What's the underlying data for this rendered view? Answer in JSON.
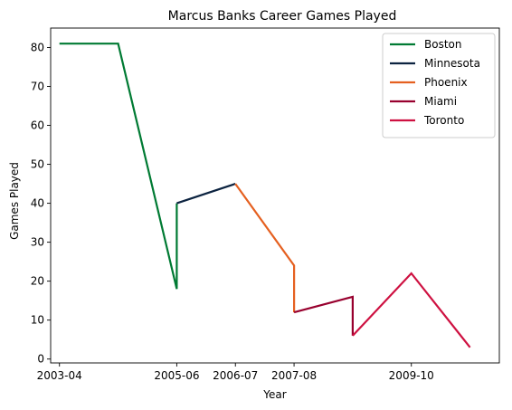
{
  "chart_data": {
    "type": "line",
    "title": "Marcus Banks Career Games Played",
    "xlabel": "Year",
    "ylabel": "Games Played",
    "xlim": [
      -0.15,
      7.5
    ],
    "ylim": [
      -1,
      85
    ],
    "x_ticks": [
      {
        "label": "2003-04",
        "x": 0
      },
      {
        "label": "2005-06",
        "x": 2
      },
      {
        "label": "2006-07",
        "x": 3
      },
      {
        "label": "2007-08",
        "x": 4
      },
      {
        "label": "2009-10",
        "x": 6
      }
    ],
    "y_ticks": [
      0,
      10,
      20,
      30,
      40,
      50,
      60,
      70,
      80
    ],
    "grid": false,
    "legend_position": "top-right",
    "series": [
      {
        "name": "Boston",
        "color": "#007a33",
        "points": [
          [
            0,
            81
          ],
          [
            1,
            81
          ],
          [
            2,
            18
          ],
          [
            2,
            40
          ]
        ]
      },
      {
        "name": "Minnesota",
        "color": "#0c2340",
        "points": [
          [
            2,
            40
          ],
          [
            3,
            45
          ]
        ]
      },
      {
        "name": "Phoenix",
        "color": "#e56020",
        "points": [
          [
            3,
            45
          ],
          [
            4,
            24
          ],
          [
            4,
            12
          ]
        ]
      },
      {
        "name": "Miami",
        "color": "#98002e",
        "points": [
          [
            4,
            12
          ],
          [
            5,
            16
          ],
          [
            5,
            6
          ]
        ]
      },
      {
        "name": "Toronto",
        "color": "#ce1141",
        "points": [
          [
            5,
            6
          ],
          [
            6,
            22
          ],
          [
            7,
            3
          ]
        ]
      }
    ]
  }
}
